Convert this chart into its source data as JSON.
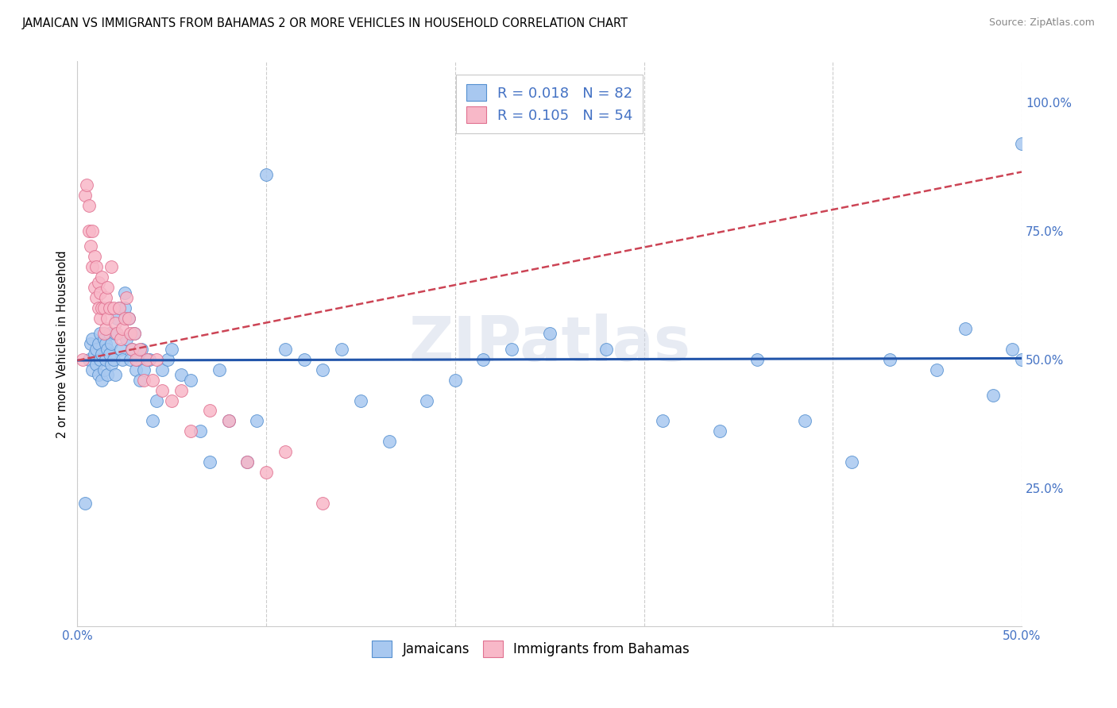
{
  "title": "JAMAICAN VS IMMIGRANTS FROM BAHAMAS 2 OR MORE VEHICLES IN HOUSEHOLD CORRELATION CHART",
  "source_text": "Source: ZipAtlas.com",
  "ylabel": "2 or more Vehicles in Household",
  "xlim": [
    0.0,
    0.5
  ],
  "ylim": [
    -0.02,
    1.08
  ],
  "xtick_positions": [
    0.0,
    0.1,
    0.2,
    0.3,
    0.4,
    0.5
  ],
  "xtick_labels": [
    "0.0%",
    "",
    "",
    "",
    "",
    "50.0%"
  ],
  "ytick_positions": [
    0.25,
    0.5,
    0.75,
    1.0
  ],
  "ytick_labels": [
    "25.0%",
    "50.0%",
    "75.0%",
    "100.0%"
  ],
  "blue_R": 0.018,
  "blue_N": 82,
  "pink_R": 0.105,
  "pink_N": 54,
  "legend_label_blue": "Jamaicans",
  "legend_label_pink": "Immigrants from Bahamas",
  "watermark": "ZIPatlas",
  "title_fontsize": 10.5,
  "source_fontsize": 9,
  "axis_label_color": "#4472c4",
  "scatter_blue_color": "#a8c8f0",
  "scatter_blue_edge": "#5590d0",
  "scatter_pink_color": "#f8b8c8",
  "scatter_pink_edge": "#e07090",
  "line_blue_color": "#2255aa",
  "line_pink_color": "#cc4455",
  "grid_color": "#cccccc",
  "blue_line_y0": 0.498,
  "blue_line_y1": 0.502,
  "pink_line_y0": 0.498,
  "pink_line_y1": 0.865,
  "blue_points_x": [
    0.004,
    0.006,
    0.007,
    0.008,
    0.008,
    0.009,
    0.01,
    0.01,
    0.011,
    0.011,
    0.012,
    0.012,
    0.013,
    0.013,
    0.014,
    0.014,
    0.015,
    0.015,
    0.016,
    0.016,
    0.017,
    0.017,
    0.018,
    0.018,
    0.019,
    0.02,
    0.02,
    0.021,
    0.022,
    0.023,
    0.024,
    0.025,
    0.025,
    0.026,
    0.027,
    0.028,
    0.029,
    0.03,
    0.031,
    0.032,
    0.033,
    0.034,
    0.035,
    0.038,
    0.04,
    0.042,
    0.045,
    0.048,
    0.05,
    0.055,
    0.06,
    0.065,
    0.07,
    0.075,
    0.08,
    0.09,
    0.095,
    0.1,
    0.11,
    0.12,
    0.13,
    0.14,
    0.15,
    0.165,
    0.185,
    0.2,
    0.215,
    0.23,
    0.25,
    0.28,
    0.31,
    0.34,
    0.36,
    0.385,
    0.41,
    0.43,
    0.455,
    0.47,
    0.485,
    0.495,
    0.5,
    0.5
  ],
  "blue_points_y": [
    0.22,
    0.5,
    0.53,
    0.54,
    0.48,
    0.51,
    0.52,
    0.49,
    0.53,
    0.47,
    0.5,
    0.55,
    0.51,
    0.46,
    0.54,
    0.48,
    0.5,
    0.53,
    0.52,
    0.47,
    0.51,
    0.55,
    0.49,
    0.53,
    0.5,
    0.55,
    0.47,
    0.58,
    0.6,
    0.52,
    0.5,
    0.6,
    0.63,
    0.54,
    0.58,
    0.5,
    0.52,
    0.55,
    0.48,
    0.5,
    0.46,
    0.52,
    0.48,
    0.5,
    0.38,
    0.42,
    0.48,
    0.5,
    0.52,
    0.47,
    0.46,
    0.36,
    0.3,
    0.48,
    0.38,
    0.3,
    0.38,
    0.86,
    0.52,
    0.5,
    0.48,
    0.52,
    0.42,
    0.34,
    0.42,
    0.46,
    0.5,
    0.52,
    0.55,
    0.52,
    0.38,
    0.36,
    0.5,
    0.38,
    0.3,
    0.5,
    0.48,
    0.56,
    0.43,
    0.52,
    0.92,
    0.5
  ],
  "pink_points_x": [
    0.003,
    0.004,
    0.005,
    0.006,
    0.006,
    0.007,
    0.008,
    0.008,
    0.009,
    0.009,
    0.01,
    0.01,
    0.011,
    0.011,
    0.012,
    0.012,
    0.013,
    0.013,
    0.014,
    0.014,
    0.015,
    0.015,
    0.016,
    0.016,
    0.017,
    0.018,
    0.019,
    0.02,
    0.021,
    0.022,
    0.023,
    0.024,
    0.025,
    0.026,
    0.027,
    0.028,
    0.029,
    0.03,
    0.031,
    0.033,
    0.035,
    0.037,
    0.04,
    0.042,
    0.045,
    0.05,
    0.055,
    0.06,
    0.07,
    0.08,
    0.09,
    0.1,
    0.11,
    0.13
  ],
  "pink_points_y": [
    0.5,
    0.82,
    0.84,
    0.8,
    0.75,
    0.72,
    0.75,
    0.68,
    0.64,
    0.7,
    0.68,
    0.62,
    0.65,
    0.6,
    0.63,
    0.58,
    0.66,
    0.6,
    0.6,
    0.55,
    0.62,
    0.56,
    0.64,
    0.58,
    0.6,
    0.68,
    0.6,
    0.57,
    0.55,
    0.6,
    0.54,
    0.56,
    0.58,
    0.62,
    0.58,
    0.55,
    0.52,
    0.55,
    0.5,
    0.52,
    0.46,
    0.5,
    0.46,
    0.5,
    0.44,
    0.42,
    0.44,
    0.36,
    0.4,
    0.38,
    0.3,
    0.28,
    0.32,
    0.22
  ]
}
